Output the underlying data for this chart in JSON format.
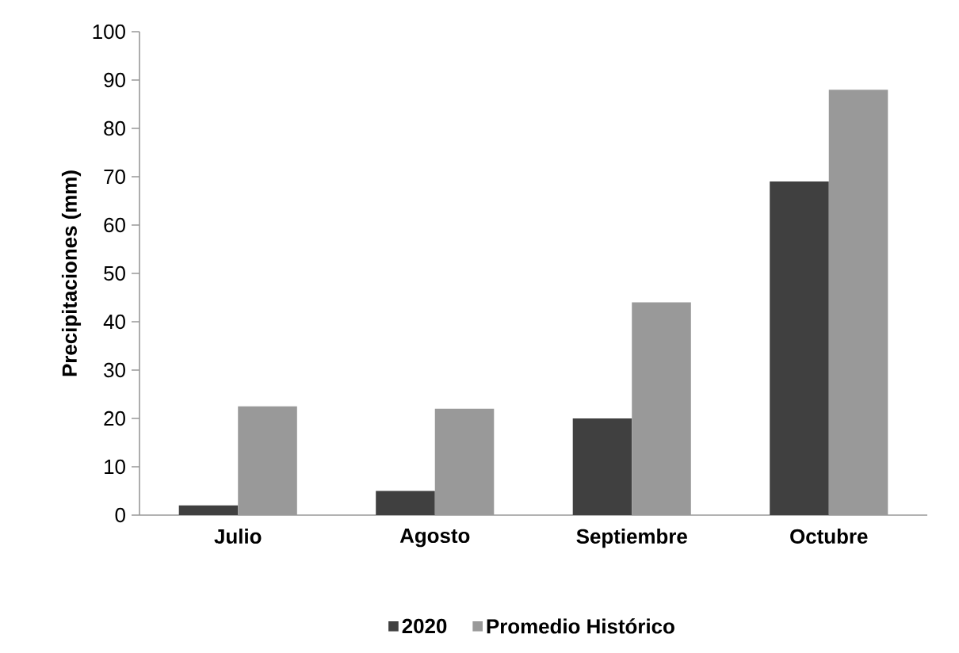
{
  "chart_data": {
    "type": "bar",
    "ylabel": "Precipitaciones (mm)",
    "categories": [
      "Julio",
      "Agosto",
      "Septiembre",
      "Octubre"
    ],
    "series": [
      {
        "name": "2020",
        "color": "#404040",
        "values": [
          2,
          5,
          20,
          69
        ]
      },
      {
        "name": "Promedio Histórico",
        "color": "#999999",
        "values": [
          22.5,
          22,
          44,
          88
        ]
      }
    ],
    "ylim": [
      0,
      100
    ],
    "yticks": [
      0,
      10,
      20,
      30,
      40,
      50,
      60,
      70,
      80,
      90,
      100
    ],
    "grid": false,
    "legend": "bottom"
  }
}
